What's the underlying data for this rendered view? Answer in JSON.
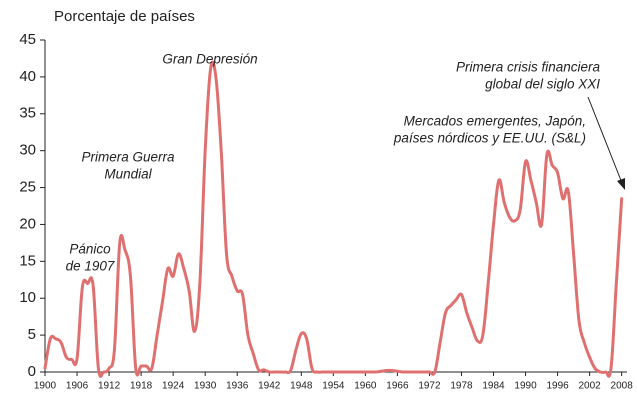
{
  "chart_data": {
    "type": "line",
    "y_label": "Porcentaje de países",
    "x": [
      1900,
      1901,
      1902,
      1903,
      1904,
      1905,
      1906,
      1907,
      1908,
      1909,
      1910,
      1911,
      1912,
      1913,
      1914,
      1915,
      1916,
      1917,
      1918,
      1919,
      1920,
      1921,
      1922,
      1923,
      1924,
      1925,
      1926,
      1927,
      1928,
      1929,
      1930,
      1931,
      1932,
      1933,
      1934,
      1935,
      1936,
      1937,
      1938,
      1939,
      1940,
      1941,
      1942,
      1943,
      1944,
      1945,
      1946,
      1947,
      1948,
      1949,
      1950,
      1951,
      1952,
      1953,
      1954,
      1955,
      1956,
      1957,
      1958,
      1959,
      1960,
      1961,
      1962,
      1963,
      1964,
      1965,
      1966,
      1967,
      1968,
      1969,
      1970,
      1971,
      1972,
      1973,
      1974,
      1975,
      1976,
      1977,
      1978,
      1979,
      1980,
      1981,
      1982,
      1983,
      1984,
      1985,
      1986,
      1987,
      1988,
      1989,
      1990,
      1991,
      1992,
      1993,
      1994,
      1995,
      1996,
      1997,
      1998,
      1999,
      2000,
      2001,
      2002,
      2003,
      2004,
      2005,
      2006,
      2007,
      2008
    ],
    "series": [
      {
        "color": "#e07070",
        "values": [
          0.5,
          4.5,
          4.5,
          4,
          2,
          1.7,
          1.8,
          11.5,
          12,
          11.8,
          0.5,
          0,
          0.5,
          3,
          17.5,
          16.5,
          13,
          0.5,
          0.8,
          0.8,
          0.5,
          5,
          9.5,
          14,
          13,
          16,
          14,
          11,
          5.5,
          12,
          30,
          41,
          40,
          30,
          16,
          13,
          11,
          10.5,
          5,
          2.5,
          0.3,
          0.3,
          0,
          0,
          0,
          0,
          0.2,
          3,
          5.2,
          4.5,
          0.5,
          0,
          0,
          0,
          0,
          0,
          0,
          0,
          0,
          0,
          0,
          0,
          0,
          0.1,
          0.2,
          0.2,
          0.1,
          0,
          0,
          0,
          0,
          0,
          0,
          0,
          4,
          8,
          9,
          9.8,
          10.5,
          8,
          6,
          4.2,
          5,
          12,
          20,
          26,
          23,
          21,
          20.5,
          22,
          28.5,
          26,
          23,
          20,
          29.5,
          28,
          27,
          23.5,
          24.5,
          16,
          7,
          4,
          2,
          0.5,
          0,
          0,
          0.5,
          12,
          23.5
        ]
      }
    ],
    "xlim": [
      1900,
      2009
    ],
    "xticks": [
      1900,
      1906,
      1912,
      1918,
      1924,
      1930,
      1936,
      1942,
      1948,
      1954,
      1960,
      1966,
      1972,
      1978,
      1984,
      1990,
      1996,
      2002,
      2008
    ],
    "ylim": [
      0,
      45
    ],
    "yticks": [
      0,
      5,
      10,
      15,
      20,
      25,
      30,
      35,
      40,
      45
    ],
    "annotations": [
      {
        "lines": [
          "Pánico",
          "de 1907"
        ]
      },
      {
        "lines": [
          "Primera Guerra",
          "Mundial"
        ]
      },
      {
        "lines": [
          "Gran Depresión"
        ]
      },
      {
        "lines": [
          "Mercados emergentes, Japón,",
          "países nórdicos y EE.UU. (S&L)"
        ]
      },
      {
        "lines": [
          "Primera crisis financiera",
          "global del siglo XXI"
        ]
      }
    ]
  }
}
